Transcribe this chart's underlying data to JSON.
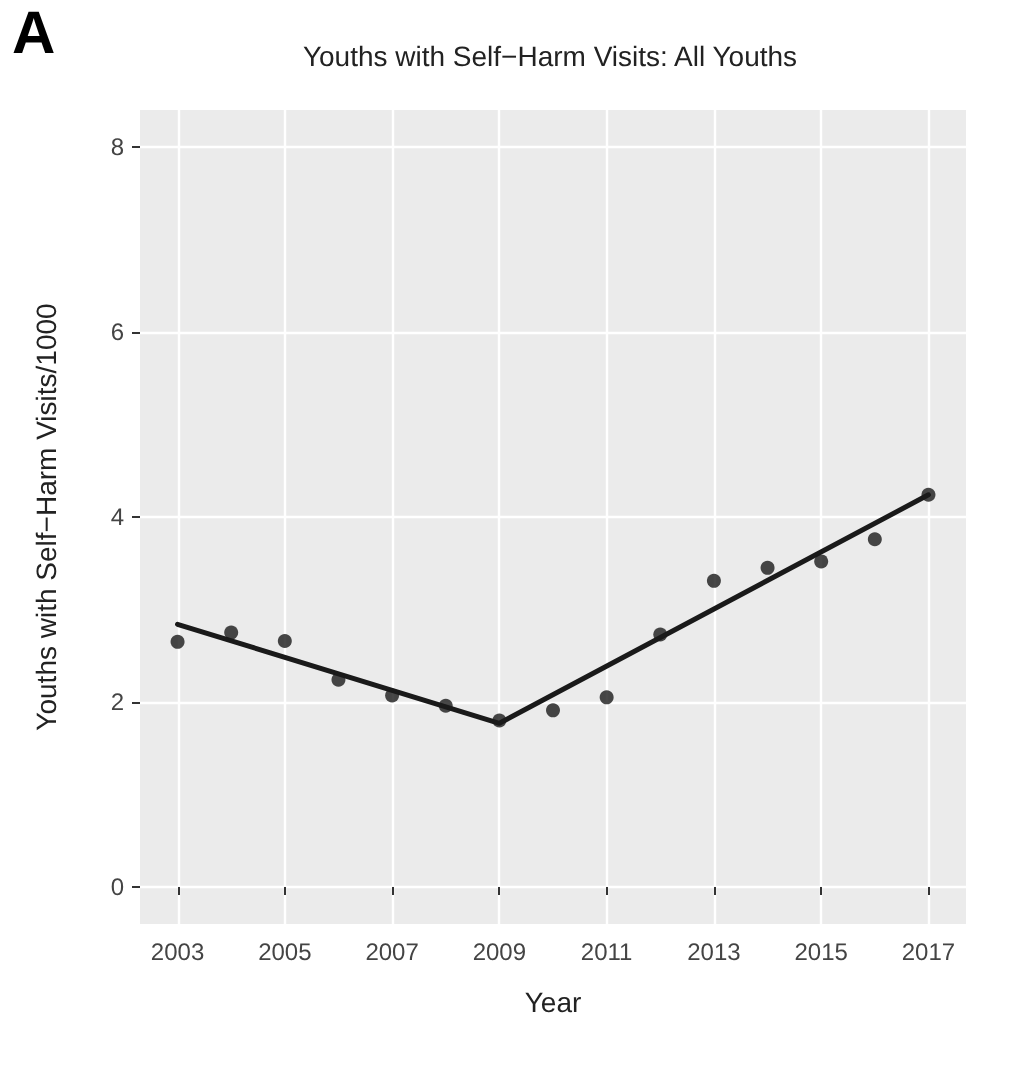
{
  "chart_data": {
    "type": "scatter",
    "title": "Youths with Self−Harm Visits: All Youths",
    "xlabel": "Year",
    "ylabel": "Youths with Self−Harm Visits/1000",
    "annotations": [
      "A"
    ],
    "xlim": [
      2002.3,
      2017.7
    ],
    "xticks": [
      2003,
      2005,
      2007,
      2009,
      2011,
      2013,
      2015,
      2017
    ],
    "ylim": [
      -0.4,
      8.4
    ],
    "yticks": [
      0,
      2,
      4,
      6,
      8
    ],
    "grid": true,
    "series": [
      {
        "marker": "circle",
        "color": "#1a1a1a",
        "x": [
          2003,
          2004,
          2005,
          2006,
          2007,
          2008,
          2009,
          2010,
          2011,
          2012,
          2013,
          2014,
          2015,
          2016,
          2017
        ],
        "values": [
          2.65,
          2.75,
          2.66,
          2.24,
          2.07,
          1.96,
          1.8,
          1.91,
          2.05,
          2.73,
          3.31,
          3.45,
          3.52,
          3.76,
          4.24
        ]
      },
      {
        "type": "line",
        "marker": "none",
        "color": "#1a1a1a",
        "line_style": "solid",
        "x": [
          2003,
          2009,
          2017
        ],
        "values": [
          2.84,
          1.77,
          4.24
        ]
      }
    ]
  }
}
